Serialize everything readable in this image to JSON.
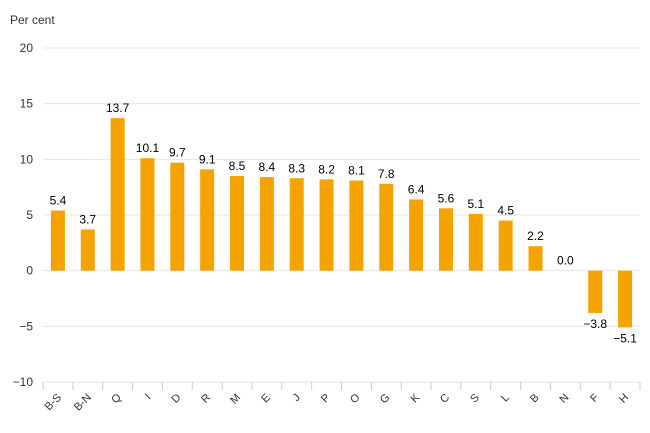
{
  "chart_data": {
    "type": "bar",
    "title": "",
    "xlabel": "",
    "ylabel": "Per cent",
    "ylim": [
      -10,
      20
    ],
    "yticks": [
      20,
      15,
      10,
      5,
      0,
      -5,
      -10
    ],
    "ytick_labels": [
      "20",
      "15",
      "10",
      "5",
      "0",
      "−5",
      "−10"
    ],
    "grid": true,
    "legend": "none",
    "bar_color": "#f5a300",
    "categories": [
      "B-S",
      "B-N",
      "Q",
      "I",
      "D",
      "R",
      "M",
      "E",
      "J",
      "P",
      "O",
      "G",
      "K",
      "C",
      "S",
      "L",
      "B",
      "N",
      "F",
      "H"
    ],
    "values": [
      5.4,
      3.7,
      13.7,
      10.1,
      9.7,
      9.1,
      8.5,
      8.4,
      8.3,
      8.2,
      8.1,
      7.8,
      6.4,
      5.6,
      5.1,
      4.5,
      2.2,
      0.0,
      -3.8,
      -5.1
    ],
    "value_labels": [
      "5.4",
      "3.7",
      "13.7",
      "10.1",
      "9.7",
      "9.1",
      "8.5",
      "8.4",
      "8.3",
      "8.2",
      "8.1",
      "7.8",
      "6.4",
      "5.6",
      "5.1",
      "4.5",
      "2.2",
      "0.0",
      "−3.8",
      "−5.1"
    ]
  }
}
